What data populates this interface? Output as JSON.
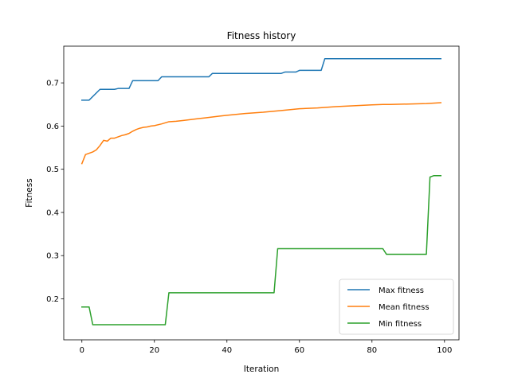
{
  "chart_data": {
    "type": "line",
    "title": "Fitness history",
    "xlabel": "Iteration",
    "ylabel": "Fitness",
    "xlim": [
      -5,
      104
    ],
    "ylim": [
      0.105,
      0.785
    ],
    "xticks": [
      0,
      20,
      40,
      60,
      80,
      100
    ],
    "yticks": [
      0.2,
      0.3,
      0.4,
      0.5,
      0.6,
      0.7
    ],
    "ytick_labels": [
      "0.2",
      "0.3",
      "0.4",
      "0.5",
      "0.6",
      "0.7"
    ],
    "grid": false,
    "legend_position": "lower right",
    "series": [
      {
        "name": "Max fitness",
        "color": "#1f77b4",
        "x": [
          0,
          2,
          5,
          9,
          10,
          13,
          14,
          21,
          22,
          35,
          36,
          55,
          56,
          59,
          60,
          66,
          67,
          99
        ],
        "y": [
          0.66,
          0.66,
          0.685,
          0.685,
          0.687,
          0.687,
          0.705,
          0.705,
          0.714,
          0.714,
          0.722,
          0.722,
          0.725,
          0.725,
          0.729,
          0.729,
          0.756,
          0.756
        ]
      },
      {
        "name": "Mean fitness",
        "color": "#ff7f0e",
        "x": [
          0,
          1,
          2,
          3,
          4,
          5,
          6,
          7,
          8,
          9,
          10,
          11,
          12,
          13,
          14,
          15,
          16,
          17,
          18,
          19,
          20,
          22,
          24,
          26,
          28,
          30,
          32,
          34,
          36,
          38,
          40,
          45,
          50,
          55,
          60,
          65,
          70,
          75,
          80,
          83,
          85,
          90,
          95,
          99
        ],
        "y": [
          0.513,
          0.534,
          0.537,
          0.54,
          0.545,
          0.555,
          0.567,
          0.565,
          0.572,
          0.572,
          0.575,
          0.578,
          0.58,
          0.583,
          0.588,
          0.592,
          0.595,
          0.597,
          0.598,
          0.6,
          0.601,
          0.605,
          0.61,
          0.611,
          0.613,
          0.615,
          0.617,
          0.619,
          0.621,
          0.623,
          0.625,
          0.629,
          0.632,
          0.636,
          0.64,
          0.642,
          0.645,
          0.647,
          0.649,
          0.65,
          0.65,
          0.651,
          0.652,
          0.654
        ]
      },
      {
        "name": "Min fitness",
        "color": "#2ca02c",
        "x": [
          0,
          2,
          3,
          23,
          24,
          53,
          54,
          83,
          84,
          95,
          96,
          97,
          99
        ],
        "y": [
          0.181,
          0.181,
          0.14,
          0.14,
          0.214,
          0.214,
          0.316,
          0.316,
          0.303,
          0.303,
          0.482,
          0.485,
          0.485
        ]
      }
    ]
  }
}
